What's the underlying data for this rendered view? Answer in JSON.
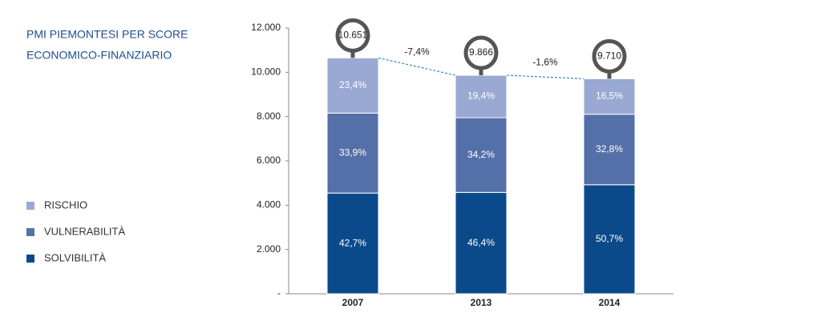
{
  "chart_data": {
    "type": "stacked-bar",
    "title": [
      "PMI PIEMONTESI PER SCORE",
      "ECONOMICO-FINANZIARIO"
    ],
    "categories": [
      "2007",
      "2013",
      "2014"
    ],
    "totals": [
      {
        "value": 10651,
        "label": "10.651"
      },
      {
        "value": 9866,
        "label": "9.866"
      },
      {
        "value": 9710,
        "label": "9.710"
      }
    ],
    "changes": [
      {
        "value": -7.4,
        "label": "-7,4%"
      },
      {
        "value": -1.6,
        "label": "-1,6%"
      }
    ],
    "series": [
      {
        "name": "RISCHIO",
        "color": "#9aa9d3",
        "values": [
          23.4,
          19.4,
          16.5
        ],
        "value_labels": [
          "23,4%",
          "19,4%",
          "16,5%"
        ]
      },
      {
        "name": "VULNERABILITÀ",
        "color": "#5570a8",
        "values": [
          33.9,
          34.2,
          32.8
        ],
        "value_labels": [
          "33,9%",
          "34,2%",
          "32,8%"
        ]
      },
      {
        "name": "SOLVIBILITÀ",
        "color": "#0b4a8a",
        "values": [
          42.7,
          46.4,
          50.7
        ],
        "value_labels": [
          "42,7%",
          "46,4%",
          "50,7%"
        ]
      }
    ],
    "ylim": [
      0,
      12000
    ],
    "yticks": [
      {
        "value": 0,
        "label": "-"
      },
      {
        "value": 2000,
        "label": "2.000"
      },
      {
        "value": 4000,
        "label": "4.000"
      },
      {
        "value": 6000,
        "label": "6.000"
      },
      {
        "value": 8000,
        "label": "8.000"
      },
      {
        "value": 10000,
        "label": "10.000"
      },
      {
        "value": 12000,
        "label": "12.000"
      }
    ]
  }
}
